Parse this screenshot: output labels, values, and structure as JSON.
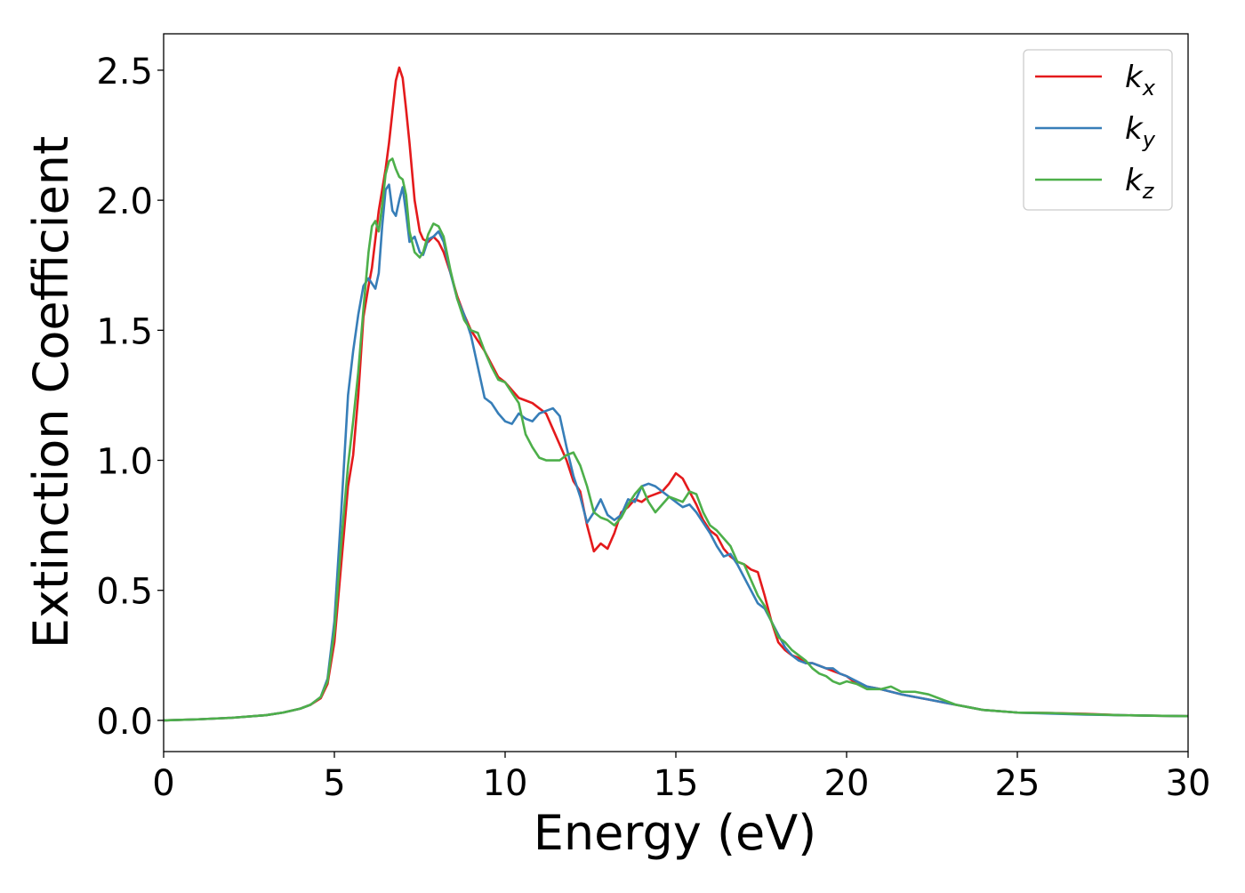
{
  "chart_data": {
    "type": "line",
    "title": "",
    "xlabel": "Energy (eV)",
    "ylabel": "Extinction Coefficient",
    "xlim": [
      0,
      30
    ],
    "ylim": [
      -0.12,
      2.64
    ],
    "xticks": [
      0,
      5,
      10,
      15,
      20,
      25,
      30
    ],
    "xtick_labels": [
      "0",
      "5",
      "10",
      "15",
      "20",
      "25",
      "30"
    ],
    "yticks": [
      0.0,
      0.5,
      1.0,
      1.5,
      2.0,
      2.5
    ],
    "ytick_labels": [
      "0.0",
      "0.5",
      "1.0",
      "1.5",
      "2.0",
      "2.5"
    ],
    "grid": false,
    "legend_position": "top-right",
    "series": [
      {
        "name": "k_x",
        "label_main": "k",
        "label_sub": "x",
        "color": "#e41a1c",
        "x": [
          0,
          1,
          2,
          3,
          3.5,
          4,
          4.3,
          4.6,
          4.8,
          5.0,
          5.2,
          5.4,
          5.55,
          5.7,
          5.85,
          6.0,
          6.1,
          6.2,
          6.3,
          6.4,
          6.5,
          6.6,
          6.7,
          6.8,
          6.9,
          7.0,
          7.1,
          7.2,
          7.35,
          7.5,
          7.6,
          7.75,
          7.9,
          8.05,
          8.2,
          8.4,
          8.6,
          8.8,
          9.0,
          9.2,
          9.4,
          9.6,
          9.8,
          10.0,
          10.2,
          10.4,
          10.6,
          10.8,
          11.0,
          11.2,
          11.4,
          11.6,
          11.8,
          12.0,
          12.2,
          12.4,
          12.6,
          12.8,
          13.0,
          13.2,
          13.4,
          13.6,
          13.8,
          14.0,
          14.2,
          14.4,
          14.6,
          14.8,
          15.0,
          15.2,
          15.4,
          15.6,
          15.8,
          16.0,
          16.2,
          16.4,
          16.6,
          16.8,
          17.0,
          17.2,
          17.4,
          17.6,
          17.8,
          18.0,
          18.2,
          18.4,
          18.6,
          18.8,
          19.0,
          19.2,
          19.4,
          19.6,
          19.8,
          20.0,
          20.3,
          20.6,
          21.0,
          21.3,
          21.6,
          22.0,
          22.4,
          22.8,
          23.2,
          23.6,
          24.0,
          25.0,
          26.0,
          27.0,
          28.0,
          29.0,
          30.0
        ],
        "y": [
          0.0,
          0.004,
          0.01,
          0.02,
          0.03,
          0.045,
          0.06,
          0.085,
          0.14,
          0.3,
          0.6,
          0.9,
          1.02,
          1.25,
          1.55,
          1.67,
          1.74,
          1.85,
          1.96,
          2.04,
          2.12,
          2.22,
          2.34,
          2.46,
          2.51,
          2.47,
          2.35,
          2.22,
          2.0,
          1.88,
          1.85,
          1.84,
          1.86,
          1.84,
          1.8,
          1.72,
          1.63,
          1.56,
          1.5,
          1.46,
          1.42,
          1.37,
          1.32,
          1.3,
          1.27,
          1.24,
          1.23,
          1.22,
          1.2,
          1.18,
          1.12,
          1.06,
          1.0,
          0.92,
          0.88,
          0.75,
          0.65,
          0.68,
          0.66,
          0.72,
          0.8,
          0.82,
          0.85,
          0.84,
          0.86,
          0.87,
          0.88,
          0.91,
          0.95,
          0.93,
          0.88,
          0.83,
          0.77,
          0.73,
          0.71,
          0.66,
          0.63,
          0.61,
          0.6,
          0.58,
          0.57,
          0.48,
          0.38,
          0.3,
          0.27,
          0.25,
          0.24,
          0.22,
          0.22,
          0.21,
          0.2,
          0.19,
          0.18,
          0.17,
          0.14,
          0.13,
          0.12,
          0.11,
          0.1,
          0.09,
          0.08,
          0.07,
          0.06,
          0.05,
          0.04,
          0.03,
          0.028,
          0.025,
          0.02,
          0.018,
          0.016
        ]
      },
      {
        "name": "k_y",
        "label_main": "k",
        "label_sub": "y",
        "color": "#377eb8",
        "x": [
          0,
          1,
          2,
          3,
          3.5,
          4,
          4.3,
          4.6,
          4.8,
          5.0,
          5.2,
          5.4,
          5.55,
          5.7,
          5.85,
          6.0,
          6.1,
          6.2,
          6.3,
          6.4,
          6.5,
          6.6,
          6.7,
          6.8,
          6.9,
          7.0,
          7.1,
          7.2,
          7.35,
          7.5,
          7.6,
          7.75,
          7.9,
          8.05,
          8.2,
          8.4,
          8.6,
          8.8,
          9.0,
          9.2,
          9.4,
          9.6,
          9.8,
          10.0,
          10.2,
          10.4,
          10.6,
          10.8,
          11.0,
          11.2,
          11.4,
          11.6,
          11.8,
          12.0,
          12.2,
          12.4,
          12.6,
          12.8,
          13.0,
          13.2,
          13.4,
          13.6,
          13.8,
          14.0,
          14.2,
          14.4,
          14.6,
          14.8,
          15.0,
          15.2,
          15.4,
          15.6,
          15.8,
          16.0,
          16.2,
          16.4,
          16.6,
          16.8,
          17.0,
          17.2,
          17.4,
          17.6,
          17.8,
          18.0,
          18.2,
          18.4,
          18.6,
          18.8,
          19.0,
          19.2,
          19.4,
          19.6,
          19.8,
          20.0,
          20.3,
          20.6,
          21.0,
          21.3,
          21.6,
          22.0,
          22.4,
          22.8,
          23.2,
          23.6,
          24.0,
          25.0,
          26.0,
          27.0,
          28.0,
          29.0,
          30.0
        ],
        "y": [
          0.0,
          0.004,
          0.01,
          0.02,
          0.03,
          0.045,
          0.06,
          0.09,
          0.16,
          0.38,
          0.8,
          1.25,
          1.42,
          1.56,
          1.67,
          1.7,
          1.68,
          1.66,
          1.72,
          1.9,
          2.04,
          2.06,
          1.96,
          1.94,
          2.0,
          2.05,
          1.95,
          1.84,
          1.86,
          1.8,
          1.79,
          1.85,
          1.86,
          1.88,
          1.84,
          1.72,
          1.62,
          1.56,
          1.48,
          1.36,
          1.24,
          1.22,
          1.18,
          1.15,
          1.14,
          1.18,
          1.16,
          1.15,
          1.18,
          1.19,
          1.2,
          1.17,
          1.05,
          0.94,
          0.86,
          0.76,
          0.8,
          0.85,
          0.79,
          0.77,
          0.79,
          0.85,
          0.84,
          0.9,
          0.91,
          0.9,
          0.88,
          0.86,
          0.84,
          0.82,
          0.83,
          0.8,
          0.76,
          0.72,
          0.67,
          0.63,
          0.64,
          0.6,
          0.55,
          0.5,
          0.45,
          0.43,
          0.38,
          0.33,
          0.28,
          0.25,
          0.23,
          0.22,
          0.22,
          0.21,
          0.2,
          0.2,
          0.18,
          0.17,
          0.15,
          0.13,
          0.12,
          0.11,
          0.1,
          0.09,
          0.08,
          0.07,
          0.06,
          0.05,
          0.04,
          0.03,
          0.026,
          0.022,
          0.02,
          0.018,
          0.016
        ]
      },
      {
        "name": "k_z",
        "label_main": "k",
        "label_sub": "z",
        "color": "#4daf4a",
        "x": [
          0,
          1,
          2,
          3,
          3.5,
          4,
          4.3,
          4.6,
          4.8,
          5.0,
          5.2,
          5.4,
          5.55,
          5.7,
          5.85,
          6.0,
          6.1,
          6.2,
          6.3,
          6.4,
          6.5,
          6.6,
          6.7,
          6.8,
          6.9,
          7.0,
          7.1,
          7.2,
          7.35,
          7.5,
          7.6,
          7.75,
          7.9,
          8.05,
          8.2,
          8.4,
          8.6,
          8.8,
          9.0,
          9.2,
          9.4,
          9.6,
          9.8,
          10.0,
          10.2,
          10.4,
          10.6,
          10.8,
          11.0,
          11.2,
          11.4,
          11.6,
          11.8,
          12.0,
          12.2,
          12.4,
          12.6,
          12.8,
          13.0,
          13.2,
          13.4,
          13.6,
          13.8,
          14.0,
          14.2,
          14.4,
          14.6,
          14.8,
          15.0,
          15.2,
          15.4,
          15.6,
          15.8,
          16.0,
          16.2,
          16.4,
          16.6,
          16.8,
          17.0,
          17.2,
          17.4,
          17.6,
          17.8,
          18.0,
          18.2,
          18.4,
          18.6,
          18.8,
          19.0,
          19.2,
          19.4,
          19.6,
          19.8,
          20.0,
          20.3,
          20.6,
          21.0,
          21.3,
          21.6,
          22.0,
          22.4,
          22.8,
          23.2,
          23.6,
          24.0,
          25.0,
          26.0,
          27.0,
          28.0,
          29.0,
          30.0
        ],
        "y": [
          0.0,
          0.004,
          0.01,
          0.02,
          0.03,
          0.045,
          0.06,
          0.09,
          0.15,
          0.34,
          0.68,
          0.98,
          1.15,
          1.34,
          1.58,
          1.8,
          1.9,
          1.92,
          1.88,
          1.98,
          2.1,
          2.15,
          2.16,
          2.12,
          2.09,
          2.08,
          2.02,
          1.88,
          1.8,
          1.78,
          1.8,
          1.87,
          1.91,
          1.9,
          1.86,
          1.73,
          1.62,
          1.54,
          1.5,
          1.49,
          1.42,
          1.36,
          1.31,
          1.3,
          1.26,
          1.22,
          1.1,
          1.05,
          1.01,
          1.0,
          1.0,
          1.0,
          1.02,
          1.03,
          0.98,
          0.9,
          0.8,
          0.78,
          0.77,
          0.75,
          0.78,
          0.83,
          0.87,
          0.9,
          0.84,
          0.8,
          0.83,
          0.86,
          0.85,
          0.84,
          0.88,
          0.87,
          0.8,
          0.75,
          0.73,
          0.7,
          0.67,
          0.61,
          0.6,
          0.54,
          0.48,
          0.44,
          0.38,
          0.32,
          0.3,
          0.27,
          0.25,
          0.23,
          0.2,
          0.18,
          0.17,
          0.15,
          0.14,
          0.15,
          0.14,
          0.12,
          0.12,
          0.13,
          0.11,
          0.11,
          0.1,
          0.08,
          0.06,
          0.05,
          0.04,
          0.03,
          0.028,
          0.024,
          0.02,
          0.018,
          0.016
        ]
      }
    ]
  }
}
